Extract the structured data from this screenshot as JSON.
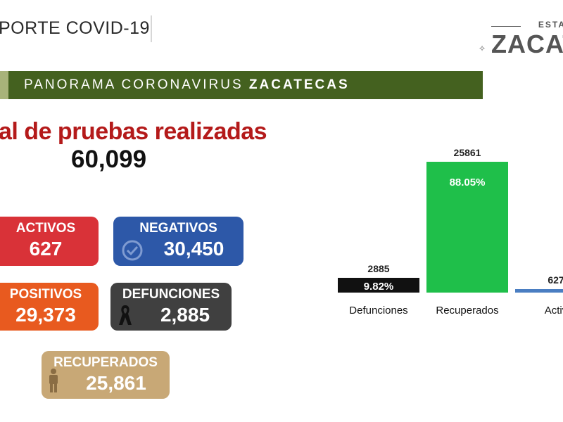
{
  "header": {
    "title": "PORTE COVID-19",
    "logo_top": "ESTA",
    "logo_main": "ZACAT"
  },
  "banner": {
    "prefix": "PANORAMA CORONAVIRUS",
    "emphasis": "ZACATECAS"
  },
  "pruebas": {
    "label": "al de pruebas realizadas",
    "value": "60,099"
  },
  "cards": {
    "activos": {
      "label": "ACTIVOS",
      "value": "627",
      "color": "#d93238"
    },
    "negativos": {
      "label": "NEGATIVOS",
      "value": "30,450",
      "color": "#2d58a8"
    },
    "positivos": {
      "label": "POSITIVOS",
      "value": "29,373",
      "color": "#e85a1f"
    },
    "defunciones": {
      "label": "DEFUNCIONES",
      "value": "2,885",
      "color": "#404040"
    },
    "recuperados": {
      "label": "RECUPERADOS",
      "value": "25,861",
      "color": "#c8a876"
    }
  },
  "icons": {
    "negativos": "check-circle-icon",
    "defunciones": "black-ribbon-icon",
    "recuperados": "person-icon"
  },
  "chart_data": {
    "type": "bar",
    "title": "",
    "xlabel": "",
    "ylabel": "",
    "categories": [
      "Defunciones",
      "Recuperados",
      "Activ"
    ],
    "values": [
      2885,
      25861,
      627
    ],
    "value_labels": [
      "2885",
      "25861",
      "627"
    ],
    "percent_labels": [
      "9.82%",
      "88.05%",
      ""
    ],
    "colors": [
      "#111111",
      "#1fbf4a",
      "#4a7ec2"
    ],
    "ylim": [
      0,
      25861
    ],
    "grid": false,
    "legend": "none"
  }
}
